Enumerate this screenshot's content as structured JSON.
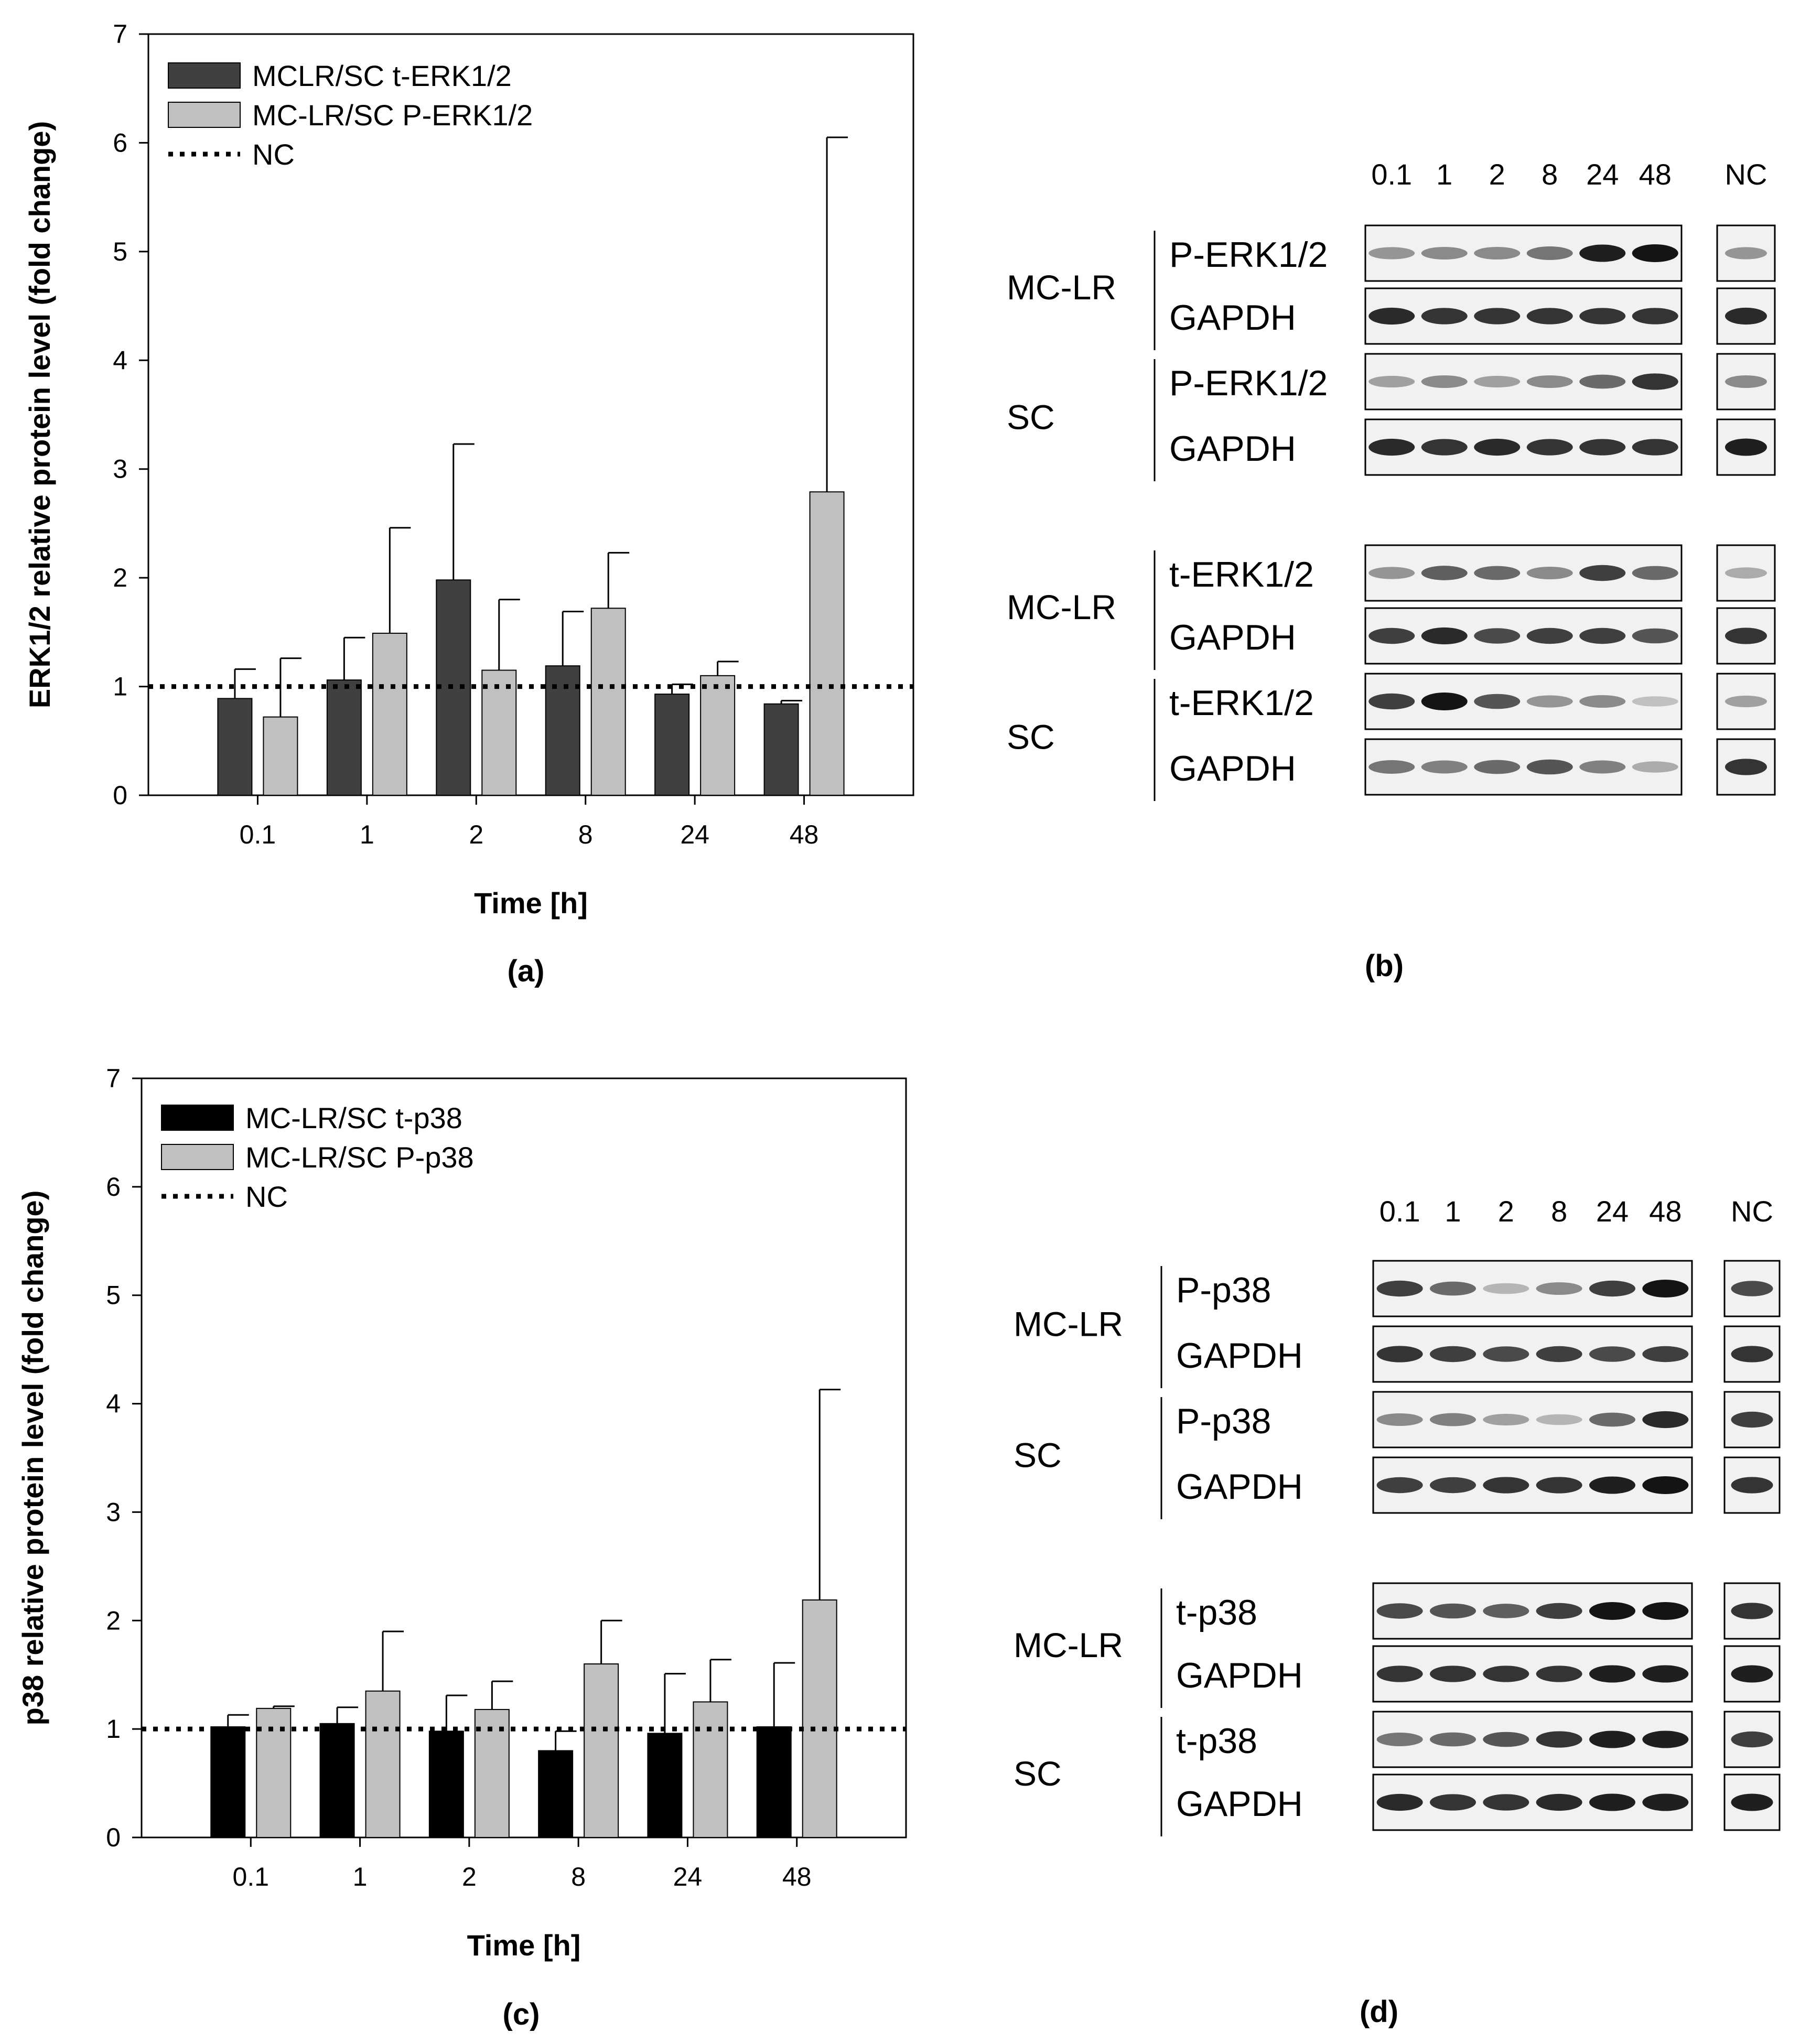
{
  "chart_data": [
    {
      "panel": "(a)",
      "type": "bar",
      "categories": [
        "0.1",
        "1",
        "2",
        "8",
        "24",
        "48"
      ],
      "series": [
        {
          "name": "MCLR/SC t-ERK1/2",
          "color": "#404040",
          "values": [
            0.89,
            1.06,
            1.98,
            1.19,
            0.93,
            0.84
          ],
          "errors": [
            0.27,
            0.39,
            1.25,
            0.5,
            0.09,
            0.03
          ]
        },
        {
          "name": "MC-LR/SC P-ERK1/2",
          "color": "#c0c0c0",
          "values": [
            0.72,
            1.49,
            1.15,
            1.72,
            1.1,
            2.79
          ],
          "errors": [
            0.54,
            0.97,
            0.65,
            0.51,
            0.13,
            3.26
          ]
        }
      ],
      "reference_line": {
        "name": "NC",
        "value": 1
      },
      "xlabel": "Time [h]",
      "ylabel": "ERK1/2 relative protein level (fold change)",
      "ylim": [
        0,
        7
      ],
      "yticks": [
        "0",
        "1",
        "2",
        "3",
        "4",
        "5",
        "6",
        "7"
      ],
      "legend": "top-left"
    },
    {
      "panel": "(c)",
      "type": "bar",
      "categories": [
        "0.1",
        "1",
        "2",
        "8",
        "24",
        "48"
      ],
      "series": [
        {
          "name": "MC-LR/SC t-p38",
          "color": "#000000",
          "values": [
            1.02,
            1.05,
            0.98,
            0.8,
            0.96,
            1.02
          ],
          "errors": [
            0.11,
            0.15,
            0.33,
            0.18,
            0.55,
            0.59
          ]
        },
        {
          "name": "MC-LR/SC P-p38",
          "color": "#c0c0c0",
          "values": [
            1.19,
            1.35,
            1.18,
            1.6,
            1.25,
            2.19
          ],
          "errors": [
            0.02,
            0.55,
            0.26,
            0.4,
            0.39,
            1.94
          ]
        }
      ],
      "reference_line": {
        "name": "NC",
        "value": 1
      },
      "xlabel": "Time [h]",
      "ylabel": "p38 relative protein level (fold change)",
      "ylim": [
        0,
        7
      ],
      "yticks": [
        "0",
        "1",
        "2",
        "3",
        "4",
        "5",
        "6",
        "7"
      ],
      "legend": "top-left"
    }
  ],
  "panel_labels": {
    "a": "(a)",
    "b": "(b)",
    "c": "(c)",
    "d": "(d)"
  },
  "blots": [
    {
      "panel": "(b)",
      "lanes": [
        "0.1",
        "1",
        "2",
        "8",
        "24",
        "48"
      ],
      "control_lane": "NC",
      "blocks": [
        {
          "group": "MC-LR",
          "rows": [
            {
              "label": "P-ERK1/2",
              "intensity": [
                0.4,
                0.45,
                0.45,
                0.55,
                0.95,
                1.0
              ],
              "nc": 0.4
            },
            {
              "label": "GAPDH",
              "intensity": [
                0.9,
                0.85,
                0.85,
                0.85,
                0.85,
                0.85
              ],
              "nc": 0.9
            }
          ]
        },
        {
          "group": "SC",
          "rows": [
            {
              "label": "P-ERK1/2",
              "intensity": [
                0.35,
                0.45,
                0.35,
                0.45,
                0.6,
                0.85
              ],
              "nc": 0.45
            },
            {
              "label": "GAPDH",
              "intensity": [
                0.9,
                0.85,
                0.9,
                0.85,
                0.85,
                0.85
              ],
              "nc": 0.95
            }
          ]
        },
        {
          "group": "MC-LR",
          "rows": [
            {
              "label": "t-ERK1/2",
              "intensity": [
                0.4,
                0.65,
                0.6,
                0.45,
                0.8,
                0.6
              ],
              "nc": 0.3
            },
            {
              "label": "GAPDH",
              "intensity": [
                0.8,
                0.9,
                0.75,
                0.8,
                0.8,
                0.7
              ],
              "nc": 0.85
            }
          ]
        },
        {
          "group": "SC",
          "rows": [
            {
              "label": "t-ERK1/2",
              "intensity": [
                0.8,
                1.0,
                0.7,
                0.4,
                0.45,
                0.2
              ],
              "nc": 0.35
            },
            {
              "label": "GAPDH",
              "intensity": [
                0.55,
                0.5,
                0.6,
                0.7,
                0.5,
                0.3
              ],
              "nc": 0.85
            }
          ]
        }
      ]
    },
    {
      "panel": "(d)",
      "lanes": [
        "0.1",
        "1",
        "2",
        "8",
        "24",
        "48"
      ],
      "control_lane": "NC",
      "blocks": [
        {
          "group": "MC-LR",
          "rows": [
            {
              "label": "P-p38",
              "intensity": [
                0.8,
                0.6,
                0.25,
                0.45,
                0.8,
                1.0
              ],
              "nc": 0.75
            },
            {
              "label": "GAPDH",
              "intensity": [
                0.85,
                0.8,
                0.75,
                0.8,
                0.75,
                0.8
              ],
              "nc": 0.85
            }
          ]
        },
        {
          "group": "SC",
          "rows": [
            {
              "label": "P-p38",
              "intensity": [
                0.45,
                0.5,
                0.35,
                0.25,
                0.6,
                0.9
              ],
              "nc": 0.8
            },
            {
              "label": "GAPDH",
              "intensity": [
                0.8,
                0.8,
                0.85,
                0.85,
                0.95,
                1.0
              ],
              "nc": 0.85
            }
          ]
        },
        {
          "group": "MC-LR",
          "rows": [
            {
              "label": "t-p38",
              "intensity": [
                0.75,
                0.7,
                0.65,
                0.8,
                1.0,
                1.0
              ],
              "nc": 0.85
            },
            {
              "label": "GAPDH",
              "intensity": [
                0.85,
                0.85,
                0.85,
                0.85,
                0.95,
                0.95
              ],
              "nc": 0.95
            }
          ]
        },
        {
          "group": "SC",
          "rows": [
            {
              "label": "t-p38",
              "intensity": [
                0.55,
                0.6,
                0.7,
                0.85,
                0.95,
                0.95
              ],
              "nc": 0.8
            },
            {
              "label": "GAPDH",
              "intensity": [
                0.9,
                0.85,
                0.85,
                0.9,
                0.95,
                0.95
              ],
              "nc": 0.95
            }
          ]
        }
      ]
    }
  ]
}
